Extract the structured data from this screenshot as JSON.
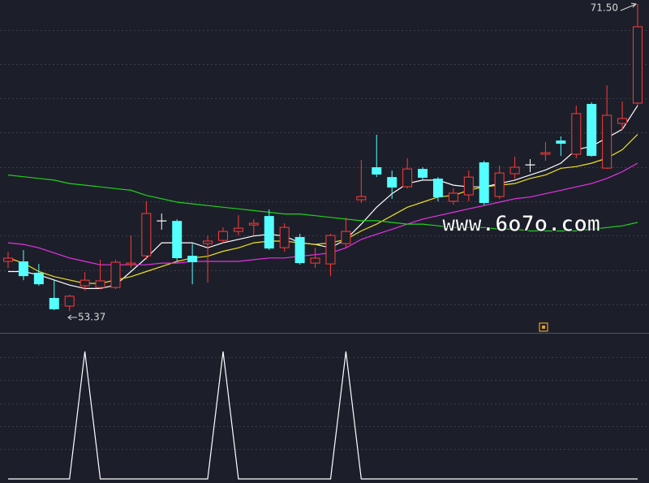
{
  "chart_data": {
    "type": "candlestick",
    "open": [
      56.3,
      56.3,
      55.63,
      54.14,
      53.66,
      54.86,
      54.76,
      54.76,
      56.11,
      56.63,
      58.69,
      58.69,
      56.63,
      57.35,
      57.54,
      58.07,
      58.45,
      58.98,
      57.11,
      57.74,
      56.2,
      56.15,
      57.35,
      59.94,
      61.86,
      61.28,
      60.71,
      61.76,
      61.19,
      59.85,
      60.23,
      62.15,
      60.13,
      61.48,
      62.0,
      62.63,
      63.44,
      62.63,
      65.6,
      61.81,
      64.45,
      65.65
    ],
    "high": [
      56.87,
      56.97,
      56.15,
      55.19,
      54.33,
      55.67,
      56.39,
      56.39,
      57.83,
      59.85,
      59.13,
      58.79,
      57.35,
      57.83,
      58.31,
      59.03,
      58.79,
      59.37,
      58.55,
      57.93,
      57.11,
      57.93,
      58.89,
      62.29,
      63.78,
      61.67,
      62.39,
      61.86,
      61.28,
      60.61,
      61.67,
      62.24,
      61.96,
      62.48,
      62.34,
      63.35,
      63.68,
      65.5,
      65.7,
      66.7,
      65.75,
      71.5
    ],
    "low": [
      55.91,
      55.19,
      54.86,
      53.42,
      53.37,
      54.57,
      54.67,
      54.67,
      55.91,
      56.39,
      58.17,
      56.3,
      54.95,
      55.05,
      57.35,
      57.83,
      57.83,
      56.97,
      56.87,
      56.11,
      55.91,
      55.43,
      57.11,
      59.75,
      61.28,
      59.99,
      60.61,
      61.09,
      59.85,
      59.65,
      59.85,
      59.61,
      59.99,
      61.19,
      61.57,
      62.24,
      62.53,
      62.39,
      62.48,
      61.76,
      64.07,
      65.5
    ],
    "close": [
      56.49,
      55.43,
      54.95,
      53.47,
      54.24,
      55.19,
      55.15,
      56.25,
      56.2,
      59.13,
      58.69,
      56.49,
      56.25,
      57.5,
      58.07,
      58.26,
      58.55,
      57.06,
      58.31,
      56.2,
      56.49,
      57.83,
      58.07,
      60.13,
      61.43,
      60.66,
      61.76,
      61.24,
      60.09,
      60.33,
      61.28,
      59.75,
      61.52,
      61.86,
      62.0,
      62.72,
      63.25,
      65.03,
      62.53,
      64.93,
      64.74,
      70.16
    ],
    "up_color": "#ff3b3b",
    "down_color": "#54ffff",
    "flat_color": "#ffffff",
    "ylim": [
      52.08,
      71.74
    ],
    "max_label": "71.50",
    "min_label": "53.37",
    "series": [
      {
        "color": "#ffffff",
        "values": [
          55.7,
          55.7,
          55.5,
          55.2,
          54.9,
          54.7,
          54.7,
          54.9,
          55.7,
          56.5,
          57.4,
          57.4,
          57.4,
          57.1,
          57.4,
          57.6,
          57.8,
          57.9,
          57.8,
          57.4,
          57.3,
          57.1,
          57.6,
          58.5,
          59.5,
          60.3,
          60.9,
          61.1,
          61.1,
          60.8,
          60.7,
          60.7,
          60.9,
          61.1,
          61.4,
          61.7,
          62.1,
          62.9,
          63.1,
          63.6,
          64.1,
          65.5
        ]
      },
      {
        "color": "#f0e020",
        "values": [
          56.5,
          56.2,
          55.7,
          55.4,
          55.2,
          55.0,
          55.0,
          55.2,
          55.4,
          55.7,
          56.0,
          56.3,
          56.5,
          56.6,
          56.9,
          57.1,
          57.4,
          57.5,
          57.5,
          57.4,
          57.3,
          57.4,
          57.6,
          58.1,
          58.5,
          59.0,
          59.5,
          59.8,
          60.1,
          60.2,
          60.5,
          60.7,
          60.8,
          60.9,
          61.2,
          61.4,
          61.8,
          61.9,
          62.1,
          62.4,
          62.9,
          63.8
        ]
      },
      {
        "color": "#e830e8",
        "values": [
          57.4,
          57.3,
          57.1,
          56.8,
          56.5,
          56.3,
          56.1,
          56.1,
          56.1,
          56.1,
          56.2,
          56.2,
          56.3,
          56.3,
          56.3,
          56.3,
          56.4,
          56.5,
          56.5,
          56.6,
          56.7,
          56.8,
          57.1,
          57.6,
          57.9,
          58.2,
          58.5,
          58.8,
          59.0,
          59.2,
          59.4,
          59.6,
          59.8,
          60.0,
          60.1,
          60.3,
          60.5,
          60.7,
          60.9,
          61.2,
          61.6,
          62.1
        ]
      },
      {
        "color": "#20d020",
        "values": [
          61.4,
          61.3,
          61.2,
          61.1,
          60.9,
          60.8,
          60.7,
          60.6,
          60.5,
          60.2,
          60.0,
          59.8,
          59.7,
          59.6,
          59.5,
          59.4,
          59.3,
          59.2,
          59.1,
          59.1,
          59.0,
          58.9,
          58.8,
          58.7,
          58.7,
          58.6,
          58.5,
          58.5,
          58.4,
          58.3,
          58.3,
          58.3,
          58.2,
          58.2,
          58.1,
          58.1,
          58.1,
          58.1,
          58.2,
          58.3,
          58.4,
          58.6
        ]
      }
    ],
    "indicator": {
      "color": "#ffffff",
      "ylim": [
        0,
        1
      ],
      "values": [
        0,
        0,
        0,
        0,
        0,
        1,
        0,
        0,
        0,
        0,
        0,
        0,
        0,
        0,
        1,
        0,
        0,
        0,
        0,
        0,
        0,
        0,
        1,
        0,
        0,
        0,
        0,
        0,
        0,
        0,
        0,
        0,
        0,
        0,
        0,
        0,
        0,
        0,
        0,
        0,
        0,
        0
      ]
    },
    "watermark": "www.6o7o.com"
  }
}
